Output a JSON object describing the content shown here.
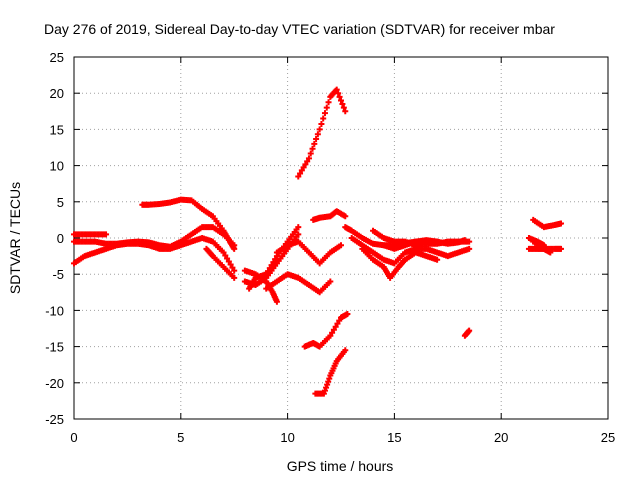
{
  "chart_data": {
    "type": "scatter",
    "title": "Day 276 of 2019, Sidereal Day-to-day VTEC variation (SDTVAR) for receiver mbar",
    "xlabel": "GPS time / hours",
    "ylabel": "SDTVAR / TECUs",
    "xlim": [
      0,
      25
    ],
    "ylim": [
      -25,
      25
    ],
    "xticks": [
      "0",
      "5",
      "10",
      "15",
      "20",
      "25"
    ],
    "yticks": [
      "25",
      "20",
      "15",
      "10",
      "5",
      "0",
      "-5",
      "-10",
      "-15",
      "-20",
      "-25"
    ],
    "grid": true,
    "marker": "+",
    "series_color": "#ff0000",
    "series": [
      {
        "name": "s1",
        "points": [
          [
            0,
            -3.5
          ],
          [
            0.5,
            -2.5
          ],
          [
            1,
            -2
          ],
          [
            1.5,
            -1.5
          ],
          [
            2,
            -1
          ],
          [
            2.5,
            -0.8
          ],
          [
            3,
            -0.8
          ],
          [
            3.5,
            -1
          ],
          [
            4,
            -1.5
          ],
          [
            4.5,
            -1.5
          ],
          [
            5,
            -1
          ],
          [
            5.5,
            -0.5
          ],
          [
            6,
            0
          ],
          [
            6.5,
            -0.5
          ],
          [
            7,
            -2
          ],
          [
            7.5,
            -4.5
          ]
        ]
      },
      {
        "name": "s2",
        "points": [
          [
            0,
            -0.5
          ],
          [
            0.5,
            -0.5
          ],
          [
            1,
            -0.5
          ],
          [
            1.5,
            -0.8
          ],
          [
            2,
            -0.8
          ],
          [
            2.5,
            -0.6
          ],
          [
            3,
            -0.5
          ],
          [
            3.5,
            -0.6
          ],
          [
            4,
            -1
          ],
          [
            4.5,
            -1.2
          ],
          [
            5,
            -0.5
          ],
          [
            5.5,
            0.5
          ],
          [
            6,
            1.5
          ],
          [
            6.5,
            1.5
          ],
          [
            7,
            0.5
          ],
          [
            7.5,
            -1
          ]
        ]
      },
      {
        "name": "s3",
        "points": [
          [
            0,
            0.5
          ],
          [
            0.5,
            0.5
          ],
          [
            1,
            0.5
          ],
          [
            1.5,
            0.5
          ]
        ]
      },
      {
        "name": "s4",
        "points": [
          [
            3.2,
            4.6
          ],
          [
            3.5,
            4.6
          ],
          [
            4,
            4.7
          ],
          [
            4.5,
            4.9
          ],
          [
            5,
            5.3
          ],
          [
            5.5,
            5.2
          ],
          [
            6,
            4
          ],
          [
            6.5,
            3
          ],
          [
            7,
            1
          ],
          [
            7.3,
            -0.5
          ],
          [
            7.5,
            -1.5
          ]
        ]
      },
      {
        "name": "s5",
        "points": [
          [
            6.2,
            -1.5
          ],
          [
            6.5,
            -2.5
          ],
          [
            7,
            -4
          ],
          [
            7.5,
            -5.5
          ]
        ]
      },
      {
        "name": "s6",
        "points": [
          [
            8,
            -4.5
          ],
          [
            8.5,
            -5
          ],
          [
            9,
            -6
          ],
          [
            9.3,
            -7.5
          ],
          [
            9.5,
            -8.8
          ]
        ]
      },
      {
        "name": "s7",
        "points": [
          [
            8,
            -6
          ],
          [
            8.5,
            -6.5
          ],
          [
            9,
            -5.5
          ],
          [
            9.5,
            -3.5
          ],
          [
            10,
            -1.5
          ],
          [
            10.5,
            0.5
          ]
        ]
      },
      {
        "name": "s8",
        "points": [
          [
            8.2,
            -7
          ],
          [
            8.5,
            -5.5
          ],
          [
            9,
            -5
          ],
          [
            9.5,
            -2.5
          ],
          [
            10,
            -0.5
          ],
          [
            10.5,
            1.5
          ]
        ]
      },
      {
        "name": "s9",
        "points": [
          [
            9,
            -7
          ],
          [
            9.5,
            -6
          ],
          [
            10,
            -5
          ],
          [
            10.5,
            -5.5
          ],
          [
            11,
            -6.5
          ],
          [
            11.5,
            -7.5
          ],
          [
            12,
            -6
          ]
        ]
      },
      {
        "name": "s10",
        "points": [
          [
            9.5,
            -2
          ],
          [
            10,
            -1
          ],
          [
            10.5,
            -0.5
          ],
          [
            11,
            -2
          ],
          [
            11.5,
            -3.5
          ],
          [
            12,
            -2
          ],
          [
            12.5,
            -1
          ]
        ]
      },
      {
        "name": "s11",
        "points": [
          [
            10.5,
            8.5
          ],
          [
            11,
            11
          ],
          [
            11.5,
            15
          ],
          [
            12,
            19.5
          ],
          [
            12.3,
            20.5
          ],
          [
            12.7,
            17.5
          ]
        ]
      },
      {
        "name": "s12",
        "points": [
          [
            11.2,
            2.5
          ],
          [
            11.5,
            2.8
          ],
          [
            12,
            3
          ],
          [
            12.3,
            3.7
          ],
          [
            12.7,
            3
          ]
        ]
      },
      {
        "name": "s13",
        "points": [
          [
            10.8,
            -15
          ],
          [
            11.2,
            -14.5
          ],
          [
            11.5,
            -15
          ],
          [
            12,
            -13.5
          ],
          [
            12.5,
            -11
          ],
          [
            12.8,
            -10.5
          ]
        ]
      },
      {
        "name": "s14",
        "points": [
          [
            11.3,
            -21.5
          ],
          [
            11.7,
            -21.5
          ],
          [
            12,
            -19
          ],
          [
            12.3,
            -17
          ],
          [
            12.7,
            -15.5
          ]
        ]
      },
      {
        "name": "s15",
        "points": [
          [
            12.7,
            1.5
          ],
          [
            13,
            1
          ],
          [
            13.5,
            0
          ],
          [
            14,
            -0.8
          ],
          [
            14.5,
            -1
          ],
          [
            15,
            -1
          ],
          [
            15.5,
            -0.7
          ],
          [
            16,
            -0.5
          ],
          [
            16.5,
            -0.5
          ],
          [
            17,
            -0.5
          ]
        ]
      },
      {
        "name": "s16",
        "points": [
          [
            13,
            0
          ],
          [
            13.5,
            -1
          ],
          [
            14,
            -2
          ],
          [
            14.5,
            -3
          ],
          [
            15,
            -3.5
          ],
          [
            15.5,
            -2
          ],
          [
            16,
            -1.5
          ],
          [
            16.5,
            -1.5
          ],
          [
            17,
            -2
          ],
          [
            17.5,
            -2.5
          ],
          [
            18,
            -2
          ],
          [
            18.5,
            -1.5
          ]
        ]
      },
      {
        "name": "s17",
        "points": [
          [
            13.5,
            -1.5
          ],
          [
            14,
            -3
          ],
          [
            14.5,
            -4
          ],
          [
            14.8,
            -5.5
          ],
          [
            15.2,
            -4
          ],
          [
            15.5,
            -3
          ],
          [
            16,
            -2
          ],
          [
            16.5,
            -2.5
          ],
          [
            17,
            -3
          ]
        ]
      },
      {
        "name": "s18",
        "points": [
          [
            14,
            1
          ],
          [
            14.5,
            0
          ],
          [
            15,
            -0.5
          ],
          [
            15.5,
            -0.5
          ],
          [
            16,
            -1
          ],
          [
            16.5,
            -0.8
          ],
          [
            17,
            -0.8
          ],
          [
            17.5,
            -0.5
          ],
          [
            18,
            -0.5
          ],
          [
            18.5,
            -0.5
          ]
        ]
      },
      {
        "name": "s19",
        "points": [
          [
            14.5,
            -1
          ],
          [
            15,
            -1.5
          ],
          [
            15.5,
            -1
          ],
          [
            16,
            -0.5
          ],
          [
            16.5,
            -0.3
          ],
          [
            17,
            -0.5
          ],
          [
            17.5,
            -0.8
          ],
          [
            18,
            -0.6
          ],
          [
            18.3,
            -0.3
          ]
        ]
      },
      {
        "name": "s20",
        "points": [
          [
            18.3,
            -13.5
          ],
          [
            18.5,
            -12.8
          ]
        ]
      },
      {
        "name": "s21",
        "points": [
          [
            21.3,
            -1.5
          ],
          [
            21.7,
            -1.5
          ],
          [
            22,
            -1.5
          ],
          [
            22.5,
            -1.5
          ],
          [
            22.8,
            -1.5
          ]
        ]
      },
      {
        "name": "s22",
        "points": [
          [
            21.3,
            0
          ],
          [
            21.7,
            -0.5
          ],
          [
            22,
            -1
          ]
        ]
      },
      {
        "name": "s23",
        "points": [
          [
            21.5,
            -0.5
          ],
          [
            22,
            -1.5
          ],
          [
            22.3,
            -2
          ]
        ]
      },
      {
        "name": "s24",
        "points": [
          [
            21.5,
            2.5
          ],
          [
            22,
            1.5
          ],
          [
            22.5,
            1.8
          ],
          [
            22.8,
            2
          ]
        ]
      }
    ]
  }
}
